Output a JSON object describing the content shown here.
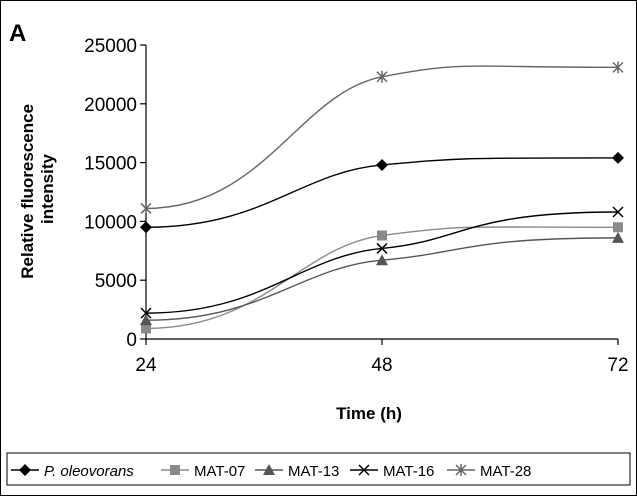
{
  "chart_data": {
    "type": "line",
    "panel_label": "A",
    "xlabel": "Time (h)",
    "ylabel": "Relative fluorescence intensity",
    "categories": [
      "24",
      "48",
      "72"
    ],
    "x": [
      24,
      48,
      72
    ],
    "xlim": [
      24,
      72
    ],
    "ylim": [
      0,
      25000
    ],
    "yticks": [
      "0",
      "5000",
      "10000",
      "15000",
      "20000",
      "25000"
    ],
    "grid": false,
    "legend_position": "bottom",
    "series": [
      {
        "name": "P. oleovorans",
        "italic": true,
        "marker": "diamond",
        "color": "#000000",
        "values": [
          9500,
          14800,
          15400
        ]
      },
      {
        "name": "MAT-07",
        "marker": "square",
        "color": "#8a8a8a",
        "values": [
          900,
          8800,
          9500
        ]
      },
      {
        "name": "MAT-13",
        "marker": "triangle",
        "color": "#555555",
        "values": [
          1600,
          6700,
          8600
        ]
      },
      {
        "name": "MAT-16",
        "marker": "x",
        "color": "#000000",
        "values": [
          2200,
          7700,
          10800
        ]
      },
      {
        "name": "MAT-28",
        "marker": "star",
        "color": "#666666",
        "values": [
          11100,
          22300,
          23100
        ]
      }
    ]
  }
}
